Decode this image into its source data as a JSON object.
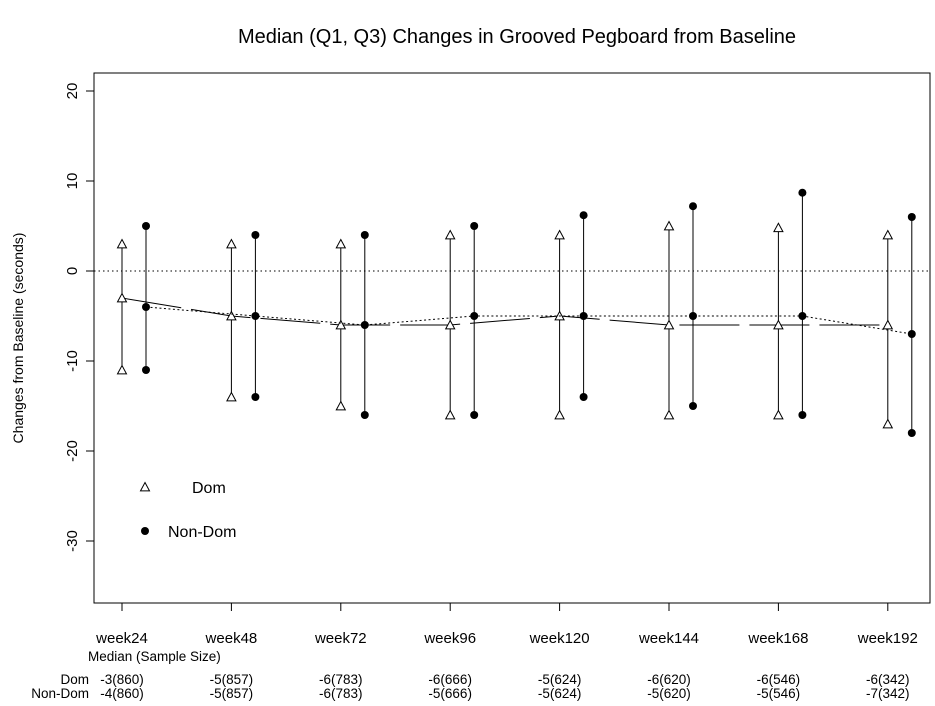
{
  "chart_data": {
    "type": "scatter",
    "title": "Median (Q1, Q3) Changes in Grooved Pegboard from Baseline",
    "xlabel": "",
    "ylabel": "Changes from Baseline (seconds)",
    "ylim": [
      -37,
      20
    ],
    "y_ticks": [
      20,
      10,
      0,
      -10,
      -20,
      -30
    ],
    "reference_line_y": 0,
    "grid": false,
    "categories": [
      "week24",
      "week48",
      "week72",
      "week96",
      "week120",
      "week144",
      "week168",
      "week192"
    ],
    "legend": {
      "placement": "lower-left",
      "entries": [
        {
          "label": "Dom",
          "marker": "open-triangle"
        },
        {
          "label": "Non-Dom",
          "marker": "filled-circle"
        }
      ]
    },
    "series": [
      {
        "name": "Dom",
        "marker": "open-triangle",
        "line_style": "solid",
        "median": [
          -3,
          -5,
          -6,
          -6,
          -5,
          -6,
          -6,
          -6
        ],
        "q1": [
          -11,
          -14,
          -15,
          -16,
          -16,
          -16,
          -16,
          -17
        ],
        "q3": [
          3,
          3,
          3,
          4,
          4,
          5,
          4.8,
          4
        ],
        "table_label": "Dom",
        "table_values": [
          "-3(860)",
          "-5(857)",
          "-6(783)",
          "-6(666)",
          "-5(624)",
          "-6(620)",
          "-6(546)",
          "-6(342)"
        ]
      },
      {
        "name": "Non-Dom",
        "marker": "filled-circle",
        "line_style": "dotted",
        "median": [
          -4,
          -5,
          -6,
          -5,
          -5,
          -5,
          -5,
          -7
        ],
        "q1": [
          -11,
          -14,
          -16,
          -16,
          -14,
          -15,
          -16,
          -18
        ],
        "q3": [
          5,
          4,
          4,
          5,
          6.2,
          7.2,
          8.7,
          6
        ],
        "table_label": "Non-Dom",
        "table_values": [
          "-4(860)",
          "-5(857)",
          "-6(783)",
          "-5(666)",
          "-5(624)",
          "-5(620)",
          "-5(546)",
          "-7(342)"
        ]
      }
    ],
    "table_caption": "Median (Sample Size)"
  }
}
